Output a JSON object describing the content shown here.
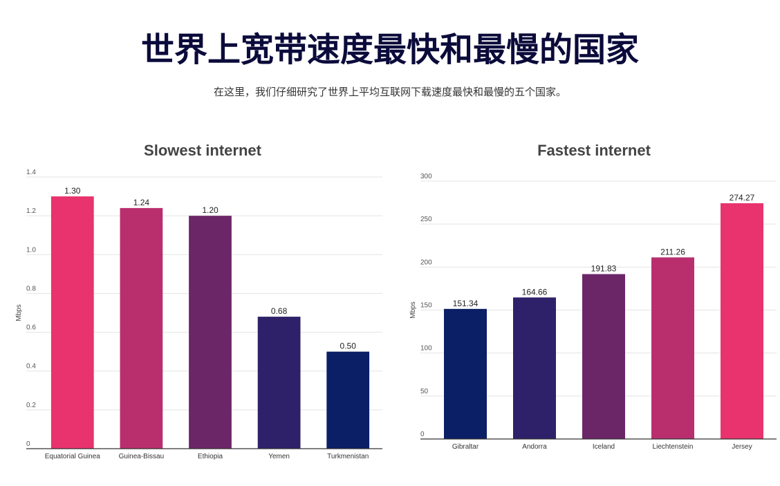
{
  "header": {
    "title": "世界上宽带速度最快和最慢的国家",
    "subtitle": "在这里，我们仔细研究了世界上平均互联网下载速度最快和最慢的五个国家。"
  },
  "chart_data": [
    {
      "type": "bar",
      "title": "Slowest internet",
      "ylabel": "Mbps",
      "xlabel": "",
      "ylim": [
        0,
        1.4
      ],
      "yticks": [
        0,
        0.2,
        0.4,
        0.6,
        0.8,
        1.0,
        1.2,
        1.4
      ],
      "ytick_labels": [
        "0",
        "0.2",
        "0.4",
        "0.6",
        "0.8",
        "1.0",
        "1.2",
        "1.4"
      ],
      "categories": [
        "Equatorial Guinea",
        "Guinea-Bissau",
        "Ethiopia",
        "Yemen",
        "Turkmenistan"
      ],
      "values": [
        1.3,
        1.24,
        1.2,
        0.68,
        0.5
      ],
      "value_labels": [
        "1.30",
        "1.24",
        "1.20",
        "0.68",
        "0.50"
      ],
      "colors": [
        "#e8336e",
        "#b92f6e",
        "#6b2668",
        "#2e2169",
        "#0b1f66"
      ],
      "grid": true
    },
    {
      "type": "bar",
      "title": "Fastest internet",
      "ylabel": "Mbps",
      "xlabel": "",
      "ylim": [
        0,
        300
      ],
      "yticks": [
        0,
        50,
        100,
        150,
        200,
        250,
        300
      ],
      "ytick_labels": [
        "0",
        "50",
        "100",
        "150",
        "200",
        "250",
        "300"
      ],
      "categories": [
        "Gibraltar",
        "Andorra",
        "Iceland",
        "Liechtenstein",
        "Jersey"
      ],
      "values": [
        151.34,
        164.66,
        191.83,
        211.26,
        274.27
      ],
      "value_labels": [
        "151.34",
        "164.66",
        "191.83",
        "211.26",
        "274.27"
      ],
      "colors": [
        "#0b1f66",
        "#2e2169",
        "#6b2668",
        "#b92f6e",
        "#e8336e"
      ],
      "grid": true
    }
  ]
}
